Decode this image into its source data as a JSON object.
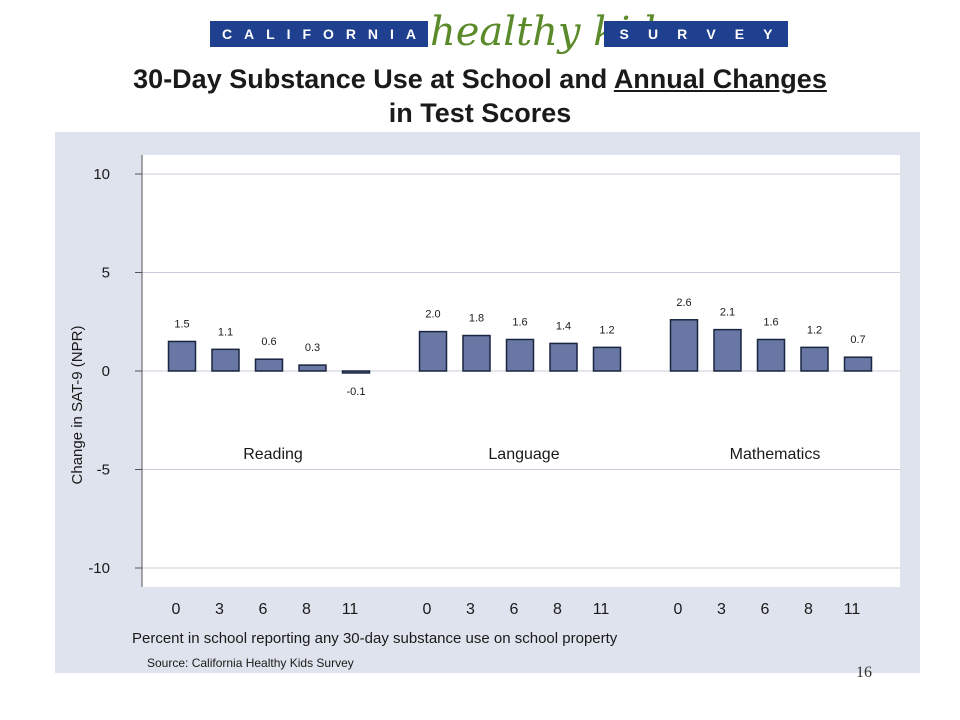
{
  "logo": {
    "left_letters": [
      "C",
      "A",
      "L",
      "I",
      "F",
      "O",
      "R",
      "N",
      "I",
      "A"
    ],
    "middle_text": "healthy kids",
    "right_letters": [
      "S",
      "U",
      "R",
      "V",
      "E",
      "Y"
    ]
  },
  "title": {
    "line1_prefix": "30-Day Substance Use at School and ",
    "line1_underlined": "Annual Changes",
    "line2": "in Test Scores"
  },
  "page_number": "16",
  "chart_data": {
    "type": "bar",
    "ylabel": "Change in SAT-9 (NPR)",
    "xlabel": "Percent in school reporting any 30-day substance use on school property",
    "source": "Source:  California Healthy Kids Survey",
    "ylim": [
      -10,
      10
    ],
    "yticks": [
      10,
      5,
      0,
      -5,
      -10
    ],
    "categories": [
      "0",
      "3",
      "6",
      "8",
      "11"
    ],
    "groups": [
      {
        "name": "Reading",
        "values": [
          1.5,
          1.1,
          0.6,
          0.3,
          -0.1
        ],
        "labels": [
          "1.5",
          "1.1",
          "0.6",
          "0.3",
          "-0.1"
        ]
      },
      {
        "name": "Language",
        "values": [
          2.0,
          1.8,
          1.6,
          1.4,
          1.2
        ],
        "labels": [
          "2.0",
          "1.8",
          "1.6",
          "1.4",
          "1.2"
        ]
      },
      {
        "name": "Mathematics",
        "values": [
          2.6,
          2.1,
          1.6,
          1.2,
          0.7
        ],
        "labels": [
          "2.6",
          "2.1",
          "1.6",
          "1.2",
          "0.7"
        ]
      }
    ],
    "colors": {
      "bar_fill": "#6877a3",
      "bar_stroke": "#1a2540",
      "plot_bg": "#ffffff",
      "panel_bg": "#dfe3ed",
      "grid": "#c8ccd8"
    },
    "grid": true,
    "legend": "none"
  }
}
